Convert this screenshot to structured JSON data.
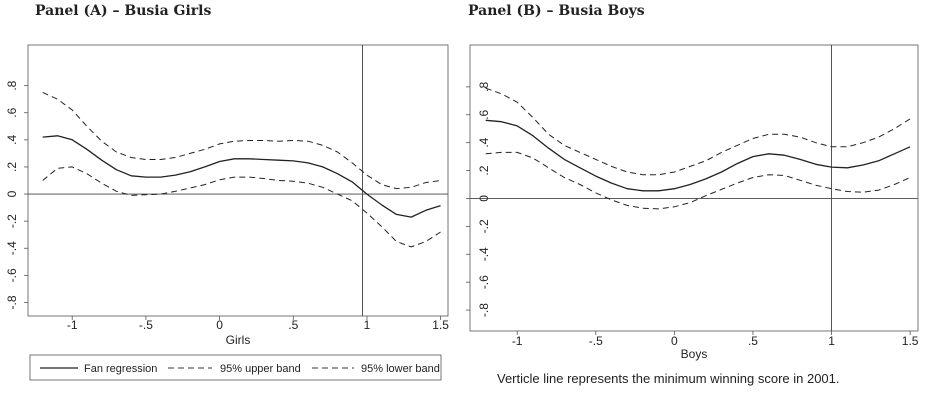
{
  "chart_data": [
    {
      "type": "line",
      "title": "Panel (A) – Busia Girls",
      "xlabel": "Girls",
      "ylabel": "",
      "xlim": [
        -1.3,
        1.55
      ],
      "ylim": [
        -0.9,
        1.1
      ],
      "x_ticks": [
        "-1",
        "-.5",
        "0",
        ".5",
        "1",
        "1.5"
      ],
      "x_tick_values": [
        -1,
        -0.5,
        0,
        0.5,
        1,
        1.5
      ],
      "y_ticks": [
        "-.8",
        "-.6",
        "-.4",
        "-.2",
        "0",
        ".2",
        ".4",
        ".6",
        ".8"
      ],
      "y_tick_values": [
        -0.8,
        -0.6,
        -0.4,
        -0.2,
        0,
        0.2,
        0.4,
        0.6,
        0.8
      ],
      "reference_lines": {
        "vertical_x": 0.97,
        "horizontal_y": 0
      },
      "series": [
        {
          "name": "Fan regression",
          "style": "solid",
          "x": [
            -1.2,
            -1.1,
            -1.0,
            -0.9,
            -0.8,
            -0.7,
            -0.6,
            -0.5,
            -0.4,
            -0.3,
            -0.2,
            -0.1,
            0,
            0.1,
            0.2,
            0.3,
            0.4,
            0.5,
            0.6,
            0.7,
            0.8,
            0.9,
            1.0,
            1.1,
            1.2,
            1.3,
            1.4,
            1.5
          ],
          "y": [
            0.42,
            0.43,
            0.4,
            0.33,
            0.25,
            0.18,
            0.135,
            0.125,
            0.125,
            0.14,
            0.165,
            0.2,
            0.24,
            0.26,
            0.26,
            0.255,
            0.25,
            0.245,
            0.23,
            0.2,
            0.15,
            0.09,
            0.0,
            -0.08,
            -0.15,
            -0.17,
            -0.12,
            -0.085
          ]
        },
        {
          "name": "95% upper band",
          "style": "dash",
          "x": [
            -1.2,
            -1.1,
            -1.0,
            -0.9,
            -0.8,
            -0.7,
            -0.6,
            -0.5,
            -0.4,
            -0.3,
            -0.2,
            -0.1,
            0,
            0.1,
            0.2,
            0.3,
            0.4,
            0.5,
            0.6,
            0.7,
            0.8,
            0.9,
            1.0,
            1.1,
            1.2,
            1.3,
            1.4,
            1.5
          ],
          "y": [
            0.75,
            0.7,
            0.62,
            0.5,
            0.39,
            0.31,
            0.27,
            0.255,
            0.255,
            0.27,
            0.3,
            0.33,
            0.37,
            0.39,
            0.395,
            0.395,
            0.39,
            0.395,
            0.39,
            0.36,
            0.31,
            0.23,
            0.14,
            0.07,
            0.04,
            0.05,
            0.085,
            0.1
          ]
        },
        {
          "name": "95% lower band",
          "style": "dash",
          "x": [
            -1.2,
            -1.1,
            -1.0,
            -0.9,
            -0.8,
            -0.7,
            -0.6,
            -0.5,
            -0.4,
            -0.3,
            -0.2,
            -0.1,
            0,
            0.1,
            0.2,
            0.3,
            0.4,
            0.5,
            0.6,
            0.7,
            0.8,
            0.9,
            1.0,
            1.1,
            1.2,
            1.3,
            1.4,
            1.5
          ],
          "y": [
            0.1,
            0.19,
            0.2,
            0.15,
            0.08,
            0.02,
            -0.01,
            -0.005,
            0.0,
            0.02,
            0.045,
            0.07,
            0.105,
            0.125,
            0.125,
            0.115,
            0.1,
            0.095,
            0.08,
            0.05,
            0.0,
            -0.05,
            -0.14,
            -0.24,
            -0.35,
            -0.39,
            -0.35,
            -0.28
          ]
        }
      ],
      "legend": {
        "placement": "bottom",
        "entries": [
          "Fan regression",
          "95% upper band",
          "95% lower band"
        ]
      }
    },
    {
      "type": "line",
      "title": "Panel (B) – Busia Boys",
      "xlabel": "Boys",
      "ylabel": "",
      "xlim": [
        -1.3,
        1.55
      ],
      "ylim": [
        -0.95,
        1.1
      ],
      "x_ticks": [
        "-1",
        "-.5",
        "0",
        ".5",
        "1",
        "1.5"
      ],
      "x_tick_values": [
        -1,
        -0.5,
        0,
        0.5,
        1,
        1.5
      ],
      "y_ticks": [
        "-.8",
        "-.6",
        "-.4",
        "-.2",
        "0",
        ".2",
        ".4",
        ".6",
        ".8"
      ],
      "y_tick_values": [
        -0.8,
        -0.6,
        -0.4,
        -0.2,
        0,
        0.2,
        0.4,
        0.6,
        0.8
      ],
      "reference_lines": {
        "vertical_x": 1.0,
        "horizontal_y": 0
      },
      "series": [
        {
          "name": "Fan regression",
          "style": "solid",
          "x": [
            -1.2,
            -1.1,
            -1.0,
            -0.9,
            -0.8,
            -0.7,
            -0.6,
            -0.5,
            -0.4,
            -0.3,
            -0.2,
            -0.1,
            0,
            0.1,
            0.2,
            0.3,
            0.4,
            0.5,
            0.6,
            0.7,
            0.8,
            0.9,
            1.0,
            1.1,
            1.2,
            1.3,
            1.4,
            1.5
          ],
          "y": [
            0.56,
            0.55,
            0.52,
            0.45,
            0.36,
            0.28,
            0.22,
            0.16,
            0.11,
            0.07,
            0.055,
            0.055,
            0.07,
            0.1,
            0.14,
            0.19,
            0.25,
            0.3,
            0.32,
            0.31,
            0.28,
            0.245,
            0.225,
            0.22,
            0.24,
            0.27,
            0.32,
            0.37
          ]
        },
        {
          "name": "95% upper band",
          "style": "dash",
          "x": [
            -1.2,
            -1.1,
            -1.0,
            -0.9,
            -0.8,
            -0.7,
            -0.6,
            -0.5,
            -0.4,
            -0.3,
            -0.2,
            -0.1,
            0,
            0.1,
            0.2,
            0.3,
            0.4,
            0.5,
            0.6,
            0.7,
            0.8,
            0.9,
            1.0,
            1.1,
            1.2,
            1.3,
            1.4,
            1.5
          ],
          "y": [
            0.79,
            0.75,
            0.69,
            0.58,
            0.46,
            0.38,
            0.33,
            0.28,
            0.23,
            0.19,
            0.17,
            0.17,
            0.19,
            0.23,
            0.27,
            0.33,
            0.38,
            0.43,
            0.46,
            0.46,
            0.44,
            0.4,
            0.37,
            0.37,
            0.4,
            0.44,
            0.5,
            0.57
          ]
        },
        {
          "name": "95% lower band",
          "style": "dash",
          "x": [
            -1.2,
            -1.1,
            -1.0,
            -0.9,
            -0.8,
            -0.7,
            -0.6,
            -0.5,
            -0.4,
            -0.3,
            -0.2,
            -0.1,
            0,
            0.1,
            0.2,
            0.3,
            0.4,
            0.5,
            0.6,
            0.7,
            0.8,
            0.9,
            1.0,
            1.1,
            1.2,
            1.3,
            1.4,
            1.5
          ],
          "y": [
            0.32,
            0.33,
            0.33,
            0.29,
            0.22,
            0.15,
            0.1,
            0.04,
            -0.01,
            -0.05,
            -0.07,
            -0.075,
            -0.06,
            -0.03,
            0.02,
            0.065,
            0.11,
            0.15,
            0.17,
            0.165,
            0.13,
            0.095,
            0.07,
            0.05,
            0.045,
            0.06,
            0.1,
            0.15
          ]
        }
      ],
      "note": "Verticle line represents the minimum winning score in 2001."
    }
  ]
}
